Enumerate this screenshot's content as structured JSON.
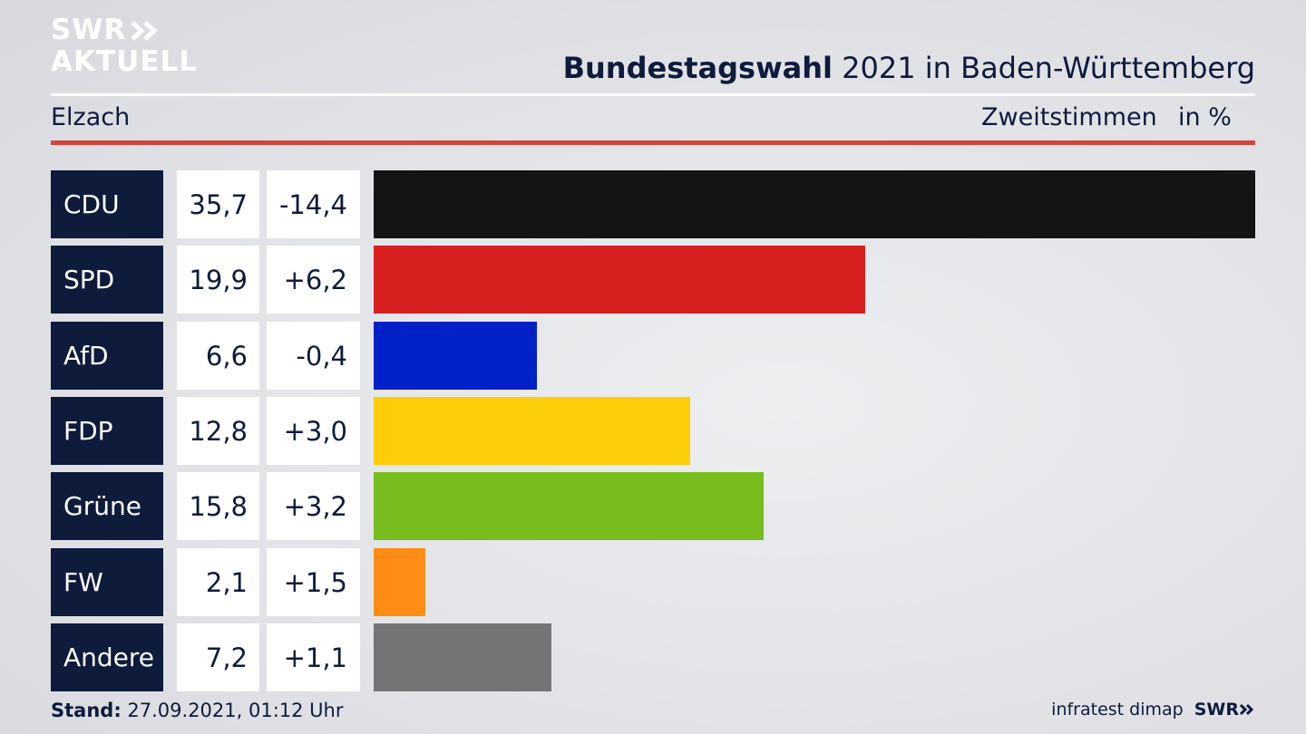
{
  "logo": {
    "line1": "SWR",
    "line2": "AKTUELL"
  },
  "header": {
    "title_bold": "Bundestagswahl",
    "title_rest": " 2021 in Baden-Württemberg",
    "region": "Elzach",
    "metric": "Zweitstimmen",
    "unit": "in %"
  },
  "footer": {
    "stand_label": "Stand:",
    "stand_value": " 27.09.2021, 01:12 Uhr",
    "source": "infratest dimap",
    "brand": "SWR"
  },
  "chart_data": {
    "type": "bar",
    "title": "Bundestagswahl 2021 in Baden-Württemberg",
    "categories": [
      "CDU",
      "SPD",
      "AfD",
      "FDP",
      "Grüne",
      "FW",
      "Andere"
    ],
    "values": [
      35.7,
      19.9,
      6.6,
      12.8,
      15.8,
      2.1,
      7.2
    ],
    "value_labels": [
      "35,7",
      "19,9",
      "6,6",
      "12,8",
      "15,8",
      "2,1",
      "7,2"
    ],
    "changes": [
      "-14,4",
      "+6,2",
      "-0,4",
      "+3,0",
      "+3,2",
      "+1,5",
      "+1,1"
    ],
    "colors": [
      "#141414",
      "#d71f1f",
      "#0020c8",
      "#fecd0a",
      "#76bd1d",
      "#ff8c14",
      "#737476"
    ],
    "xlim": [
      0,
      35.7
    ]
  }
}
